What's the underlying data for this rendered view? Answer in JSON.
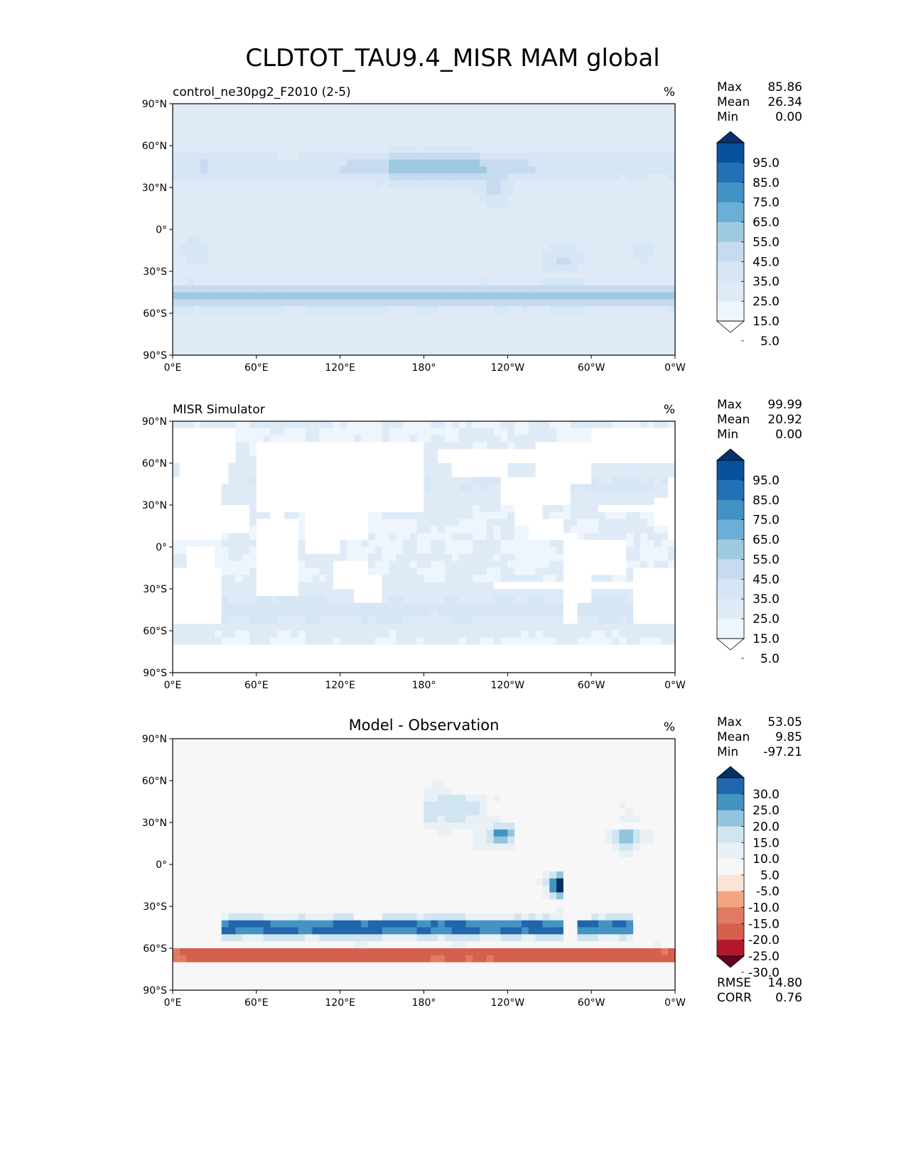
{
  "figure": {
    "title": "CLDTOT_TAU9.4_MISR MAM global"
  },
  "axes": {
    "lat_ticks": [
      "90°N",
      "60°N",
      "30°N",
      "0°",
      "30°S",
      "60°S",
      "90°S"
    ],
    "lon_ticks": [
      "0°E",
      "60°E",
      "120°E",
      "180°",
      "120°W",
      "60°W",
      "0°W"
    ]
  },
  "chart_data": [
    {
      "type": "heatmap",
      "panel": "model",
      "title_left": "control_ne30pg2_F2010 (2-5)",
      "title_center": "",
      "units": "%",
      "stats": {
        "max_label": "Max",
        "max": "85.86",
        "mean_label": "Mean",
        "mean": "26.34",
        "min_label": "Min",
        "min": "0.00"
      },
      "colorbar_levels": [
        "95.0",
        "85.0",
        "75.0",
        "65.0",
        "55.0",
        "45.0",
        "35.0",
        "25.0",
        "15.0",
        "5.0"
      ],
      "colorbar_colors": [
        "#08306b",
        "#08519c",
        "#2171b5",
        "#4292c6",
        "#6baed6",
        "#9ecae1",
        "#c6dbef",
        "#d6e6f4",
        "#deebf7",
        "#eef5fc",
        "#ffffff"
      ],
      "xlim": [
        0,
        360
      ],
      "ylim": [
        -90,
        90
      ]
    },
    {
      "type": "heatmap",
      "panel": "observation",
      "title_left": "MISR Simulator",
      "title_center": "",
      "units": "%",
      "stats": {
        "max_label": "Max",
        "max": "99.99",
        "mean_label": "Mean",
        "mean": "20.92",
        "min_label": "Min",
        "min": "0.00"
      },
      "colorbar_levels": [
        "95.0",
        "85.0",
        "75.0",
        "65.0",
        "55.0",
        "45.0",
        "35.0",
        "25.0",
        "15.0",
        "5.0"
      ],
      "colorbar_colors": [
        "#08306b",
        "#08519c",
        "#2171b5",
        "#4292c6",
        "#6baed6",
        "#9ecae1",
        "#c6dbef",
        "#d6e6f4",
        "#deebf7",
        "#eef5fc",
        "#ffffff"
      ],
      "xlim": [
        0,
        360
      ],
      "ylim": [
        -90,
        90
      ]
    },
    {
      "type": "heatmap",
      "panel": "difference",
      "title_left": "",
      "title_center": "Model - Observation",
      "units": "%",
      "stats": {
        "max_label": "Max",
        "max": "53.05",
        "mean_label": "Mean",
        "mean": "9.85",
        "min_label": "Min",
        "min": "-97.21"
      },
      "extra_stats": {
        "rmse_label": "RMSE",
        "rmse": "14.80",
        "corr_label": "CORR",
        "corr": "0.76"
      },
      "colorbar_levels": [
        "30.0",
        "25.0",
        "20.0",
        "15.0",
        "10.0",
        "5.0",
        "-5.0",
        "-10.0",
        "-15.0",
        "-20.0",
        "-25.0",
        "-30.0"
      ],
      "colorbar_colors": [
        "#053061",
        "#2166ac",
        "#4393c3",
        "#92c5de",
        "#d1e5f0",
        "#e9f1f6",
        "#f7f7f7",
        "#fbe3d6",
        "#f4a582",
        "#e07b62",
        "#d6604d",
        "#b2182b",
        "#67001f"
      ],
      "xlim": [
        0,
        360
      ],
      "ylim": [
        -90,
        90
      ]
    }
  ]
}
